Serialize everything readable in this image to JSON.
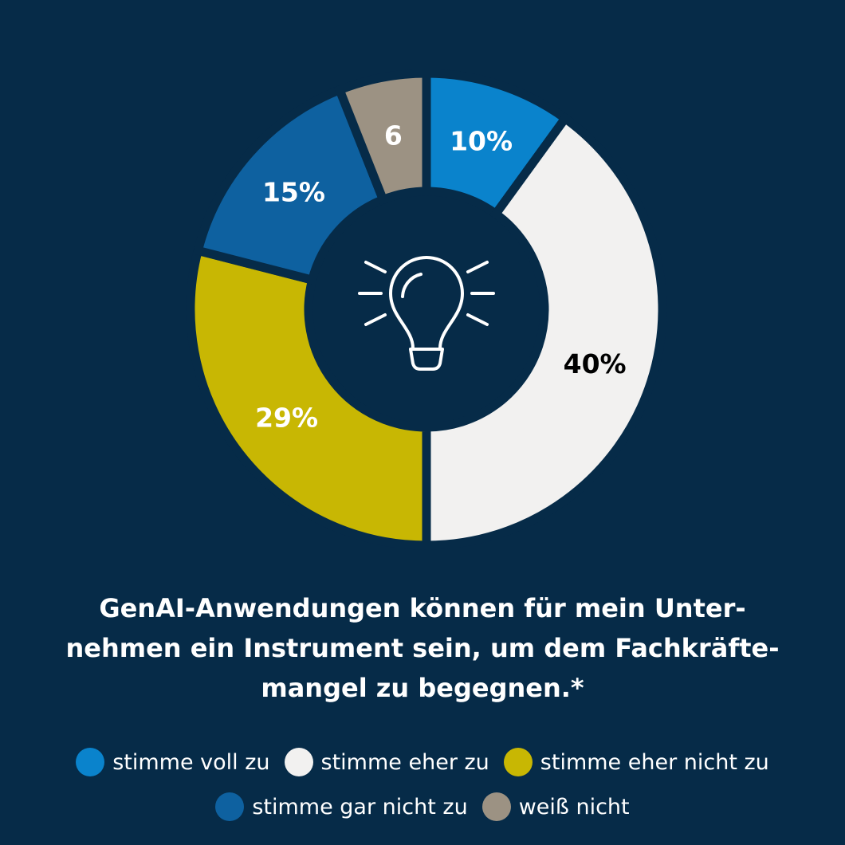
{
  "chart_data": {
    "type": "pie",
    "title": "GenAI-Anwendungen können für mein Unternehmen ein Instrument sein, um dem Fachkräftemangel zu begegnen.*",
    "title_lines": [
      "GenAI-Anwendungen können für mein Unter-",
      "nehmen ein Instrument sein, um dem Fachkräfte-",
      "mangel zu begegnen.*"
    ],
    "style": "donut",
    "center_icon": "lightbulb-icon",
    "slices": [
      {
        "name": "stimme voll zu",
        "value": 10,
        "label": "10%",
        "color": "#0a83cc",
        "label_color": "#ffffff"
      },
      {
        "name": "stimme eher zu",
        "value": 40,
        "label": "40%",
        "color": "#f2f1f0",
        "label_color": "#000000"
      },
      {
        "name": "stimme eher nicht zu",
        "value": 29,
        "label": "29%",
        "color": "#c8b703",
        "label_color": "#ffffff"
      },
      {
        "name": "stimme gar nicht zu",
        "value": 15,
        "label": "15%",
        "color": "#0e61a0",
        "label_color": "#ffffff"
      },
      {
        "name": "weiß nicht",
        "value": 6,
        "label": "6",
        "color": "#9c9283",
        "label_color": "#ffffff"
      }
    ],
    "legend": {
      "position": "bottom",
      "rows": [
        [
          {
            "label": "stimme voll zu",
            "color": "#0a83cc"
          },
          {
            "label": "stimme eher zu",
            "color": "#f2f1f0"
          },
          {
            "label": "stimme eher nicht zu",
            "color": "#c8b703"
          }
        ],
        [
          {
            "label": "stimme gar nicht zu",
            "color": "#0e61a0"
          },
          {
            "label": "weiß nicht",
            "color": "#9c9283"
          }
        ]
      ]
    }
  },
  "colors": {
    "background": "#062b48",
    "text": "#ffffff",
    "icon_stroke": "#ffffff"
  }
}
